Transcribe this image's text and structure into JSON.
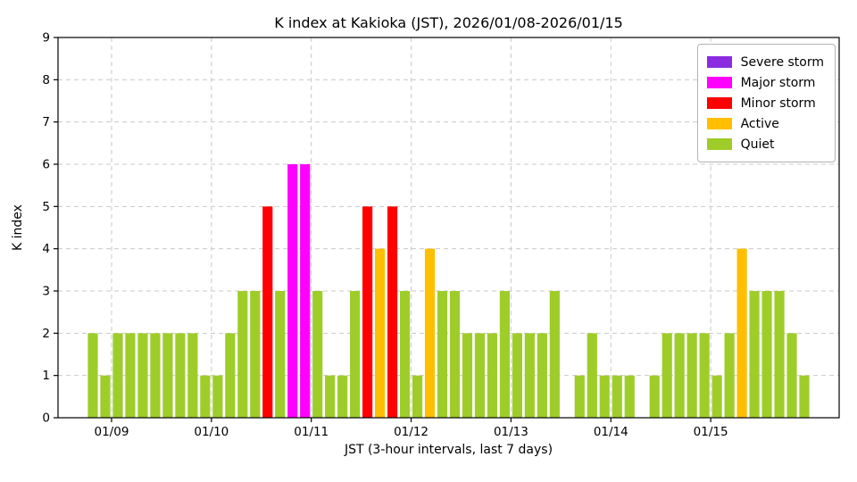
{
  "chart_data": {
    "type": "bar",
    "title": "K index at Kakioka (JST), 2026/01/08-2026/01/15",
    "xlabel": "JST (3-hour intervals, last 7 days)",
    "ylabel": "K index",
    "ylim": [
      0,
      9
    ],
    "yticks": [
      0,
      1,
      2,
      3,
      4,
      5,
      6,
      7,
      8,
      9
    ],
    "day_ticks": [
      "01/09",
      "01/10",
      "01/11",
      "01/12",
      "01/13",
      "01/14",
      "01/15"
    ],
    "intervals_per_day": 8,
    "lead_intervals_before_first_tick": 2,
    "k_values": [
      2,
      1,
      2,
      2,
      2,
      2,
      2,
      2,
      2,
      1,
      1,
      2,
      3,
      3,
      5,
      3,
      6,
      6,
      3,
      1,
      1,
      3,
      5,
      4,
      5,
      3,
      1,
      4,
      3,
      3,
      2,
      2,
      2,
      3,
      2,
      2,
      2,
      3,
      0,
      1,
      2,
      1,
      1,
      1,
      0,
      1,
      2,
      2,
      2,
      2,
      1,
      2,
      4,
      3,
      3,
      3,
      2,
      1
    ],
    "grid": true,
    "legend_position": "upper right",
    "legend": [
      {
        "label": "Severe storm",
        "color": "#8a2be2",
        "min_k": 8
      },
      {
        "label": "Major storm",
        "color": "#ff00ff",
        "min_k": 6
      },
      {
        "label": "Minor storm",
        "color": "#ff0000",
        "min_k": 5
      },
      {
        "label": "Active",
        "color": "#ffbf00",
        "min_k": 4
      },
      {
        "label": "Quiet",
        "color": "#9ecd2a",
        "min_k": 0
      }
    ]
  }
}
